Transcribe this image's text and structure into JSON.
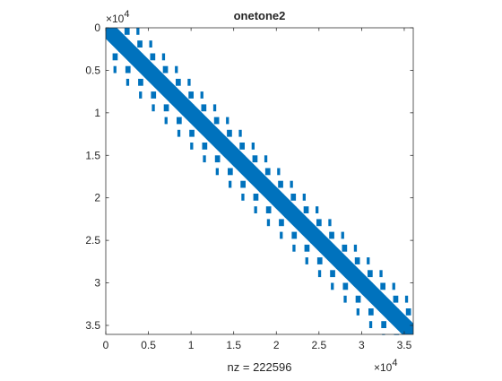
{
  "chart_data": {
    "type": "spy",
    "title": "onetone2",
    "xlabel": "nz = 222596",
    "nz": 222596,
    "n": 36057,
    "marker_color": "#0072BD",
    "xlim": [
      0,
      36057
    ],
    "ylim": [
      0,
      36057
    ],
    "y_reversed": true,
    "grid": false,
    "x_exponent_label": "×10",
    "x_exponent_power": "4",
    "y_exponent_label": "×10",
    "y_exponent_power": "4",
    "xticks": [
      0,
      0.5,
      1,
      1.5,
      2,
      2.5,
      3,
      3.5
    ],
    "xtick_labels": [
      "0",
      "0.5",
      "1",
      "1.5",
      "2",
      "2.5",
      "3",
      "3.5"
    ],
    "yticks": [
      0,
      0.5,
      1,
      1.5,
      2,
      2.5,
      3,
      3.5
    ],
    "ytick_labels": [
      "0",
      "0.5",
      "1",
      "1.5",
      "2",
      "2.5",
      "3",
      "3.5"
    ],
    "tick_scale": 10000,
    "main_band_half_width": 1300,
    "block_size": 1500,
    "off_diagonals": [
      {
        "offset": 2200,
        "width": 600
      },
      {
        "offset": -2200,
        "width": 600
      },
      {
        "offset": 3600,
        "width": 350
      },
      {
        "offset": -3600,
        "width": 350
      }
    ]
  }
}
